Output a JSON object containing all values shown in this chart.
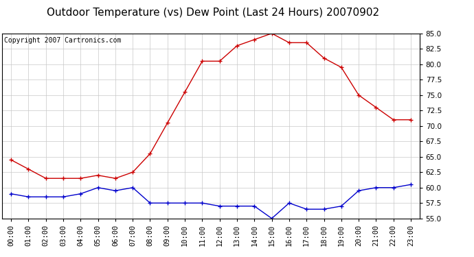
{
  "title": "Outdoor Temperature (vs) Dew Point (Last 24 Hours) 20070902",
  "copyright_text": "Copyright 2007 Cartronics.com",
  "hours": [
    "00:00",
    "01:00",
    "02:00",
    "03:00",
    "04:00",
    "05:00",
    "06:00",
    "07:00",
    "08:00",
    "09:00",
    "10:00",
    "11:00",
    "12:00",
    "13:00",
    "14:00",
    "15:00",
    "16:00",
    "17:00",
    "18:00",
    "19:00",
    "20:00",
    "21:00",
    "22:00",
    "23:00"
  ],
  "temp": [
    64.5,
    63.0,
    61.5,
    61.5,
    61.5,
    62.0,
    61.5,
    62.5,
    65.5,
    70.5,
    75.5,
    80.5,
    80.5,
    83.0,
    84.0,
    85.0,
    83.5,
    83.5,
    81.0,
    79.5,
    75.0,
    73.0,
    71.0,
    71.0
  ],
  "dewpoint": [
    59.0,
    58.5,
    58.5,
    58.5,
    59.0,
    60.0,
    59.5,
    60.0,
    57.5,
    57.5,
    57.5,
    57.5,
    57.0,
    57.0,
    57.0,
    55.0,
    57.5,
    56.5,
    56.5,
    57.0,
    59.5,
    60.0,
    60.0,
    60.5
  ],
  "temp_color": "#cc0000",
  "dew_color": "#0000cc",
  "ylim_min": 55.0,
  "ylim_max": 85.0,
  "ytick_step": 2.5,
  "bg_color": "#ffffff",
  "grid_color": "#c8c8c8",
  "title_fontsize": 11,
  "copyright_fontsize": 7,
  "tick_fontsize": 7.5,
  "marker_size": 4,
  "line_width": 1.0
}
